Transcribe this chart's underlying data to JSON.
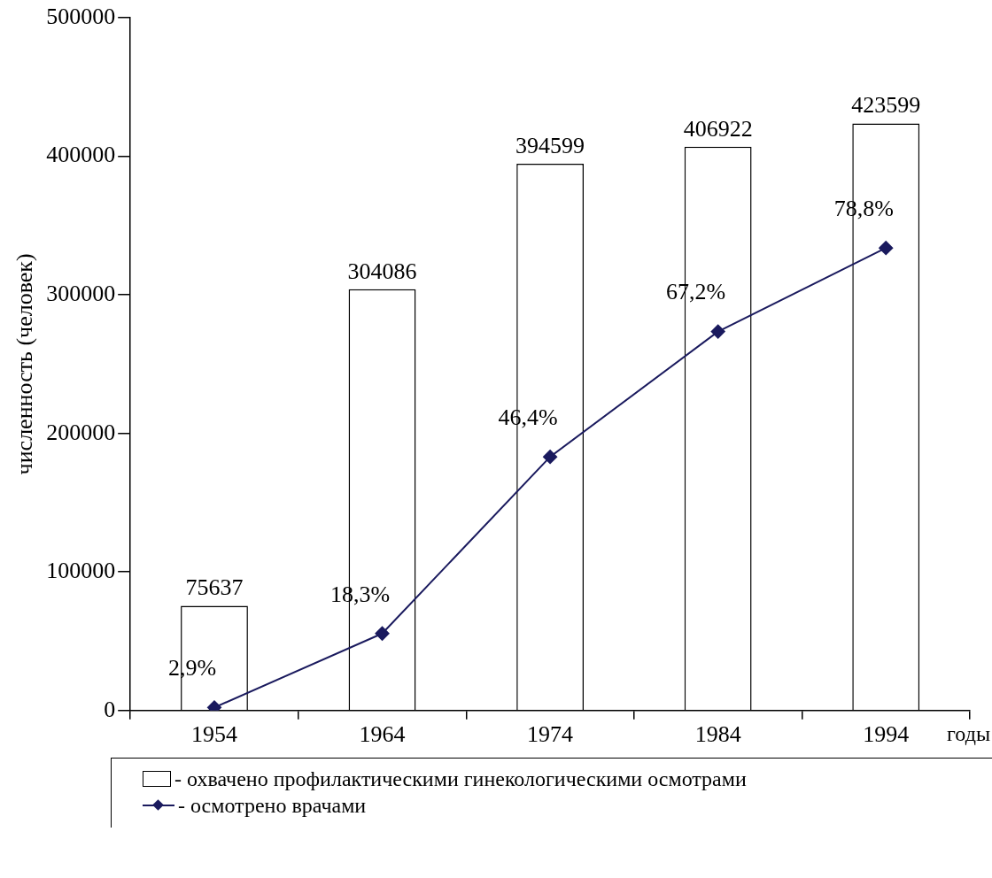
{
  "chart_data": {
    "type": "bar",
    "xlabel": "годы",
    "ylabel": "численность (человек)",
    "categories": [
      "1954",
      "1964",
      "1974",
      "1984",
      "1994"
    ],
    "series": [
      {
        "name": "- охвачено профилактическими гинекологическими осмотрами",
        "color": "#ffffff",
        "values": [
          75637,
          304086,
          394599,
          406922,
          423599
        ],
        "data_labels": true
      },
      {
        "name": "- осмотрено врачами",
        "type": "line",
        "color": "#1a1a5e",
        "values": [
          2200,
          55600,
          183100,
          273500,
          333800
        ],
        "marker": "diamond"
      }
    ],
    "annotations": [
      {
        "text": "2,9%",
        "x": "1954",
        "y": 2200
      },
      {
        "text": "18,3%",
        "x": "1964",
        "y": 55600
      },
      {
        "text": "46,4%",
        "x": "1974",
        "y": 183100
      },
      {
        "text": "67,2%",
        "x": "1984",
        "y": 273500
      },
      {
        "text": "78,8%",
        "x": "1994",
        "y": 333800
      }
    ],
    "ylim": [
      0,
      500000
    ],
    "yticks": [
      0,
      100000,
      200000,
      300000,
      400000,
      500000
    ],
    "grid": false,
    "legend": "bottom"
  }
}
